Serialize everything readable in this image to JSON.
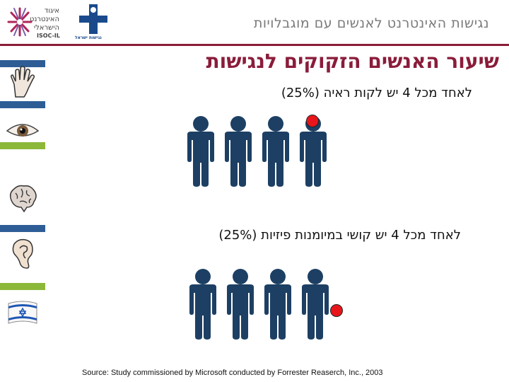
{
  "header": {
    "title": "נגישות האינטרנט לאנשים עם מוגבלויות",
    "isoc_logo_text": "איגוד האינטרנט הישראלי",
    "isoc_logo_sub": "ISOC-IL",
    "nagish_logo_text": "נגישות ישראל"
  },
  "sidebar": {
    "icons": [
      "hand-icon",
      "eye-icon",
      "brain-icon",
      "ear-icon",
      "israel-flag-icon"
    ]
  },
  "main": {
    "title": "שיעור האנשים הזקוקים לנגישות",
    "groups": [
      {
        "label": "לאחד מכל 4 יש לקות ראיה (25%)",
        "count": 4,
        "highlighted_index": 3,
        "highlight_position": "head"
      },
      {
        "label": "לאחד מכל 4 יש קושי במיומנות פיזיות (25%)",
        "count": 4,
        "highlighted_index": 3,
        "highlight_position": "hand"
      }
    ]
  },
  "footer": {
    "source": "Source: Study commissioned by Microsoft conducted by Forrester Reaserch, Inc., 2003"
  },
  "colors": {
    "accent": "#8a1c3a",
    "figure": "#1d3f63",
    "highlight": "#e8161b",
    "stripe_blue": "#2e5d96",
    "stripe_green": "#8cb83a"
  }
}
